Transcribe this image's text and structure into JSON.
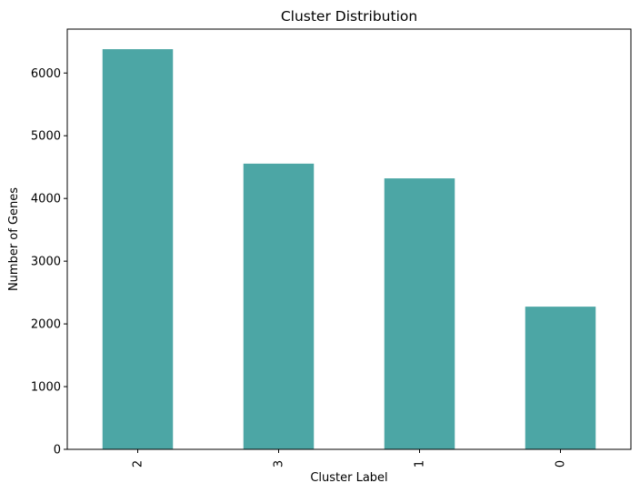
{
  "chart_data": {
    "type": "bar",
    "title": "Cluster Distribution",
    "xlabel": "Cluster Label",
    "ylabel": "Number of Genes",
    "categories": [
      "2",
      "3",
      "1",
      "0"
    ],
    "values": [
      6380,
      4555,
      4320,
      2275
    ],
    "ylim": [
      0,
      6700
    ],
    "yticks": [
      0,
      1000,
      2000,
      3000,
      4000,
      5000,
      6000
    ],
    "bar_color": "#4ca6a5",
    "grid": false,
    "legend": "none"
  }
}
